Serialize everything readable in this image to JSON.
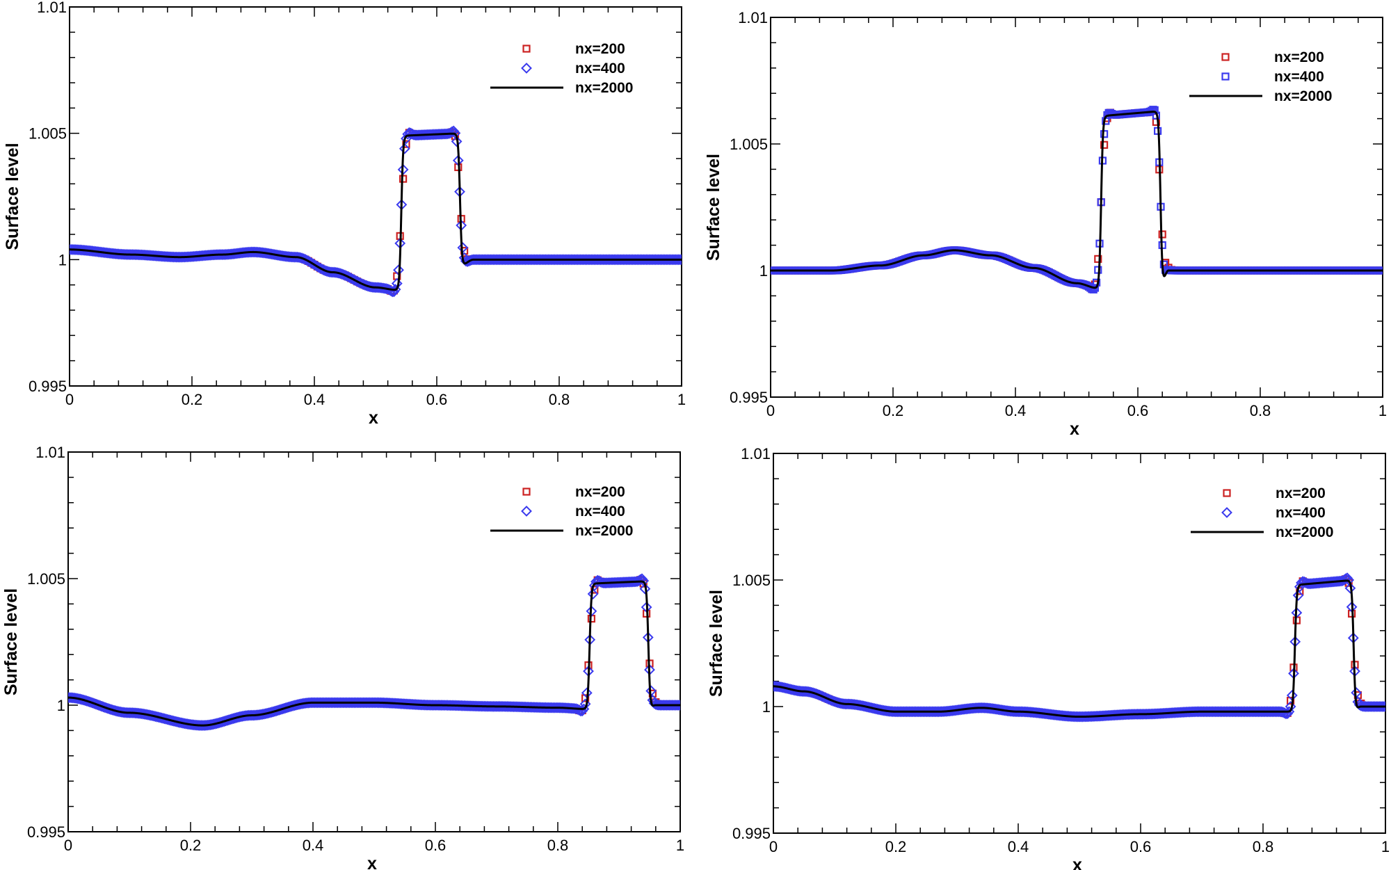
{
  "chart_data": [
    {
      "type": "scatter",
      "panel": "top-left",
      "title": "",
      "xlabel": "x",
      "ylabel": "Surface level",
      "xlim": [
        0,
        1
      ],
      "ylim": [
        0.995,
        1.01
      ],
      "xticks": [
        0,
        0.2,
        0.4,
        0.6,
        0.8,
        1
      ],
      "xtick_labels": [
        "0",
        "0.2",
        "0.4",
        "0.6",
        "0.8",
        "1"
      ],
      "yticks": [
        0.995,
        1,
        1.005,
        1.01
      ],
      "ytick_labels": [
        "0.995",
        "1",
        "1.005",
        "1.01"
      ],
      "legend_position": "top-right",
      "marker_200": "square",
      "marker_400": "diamond",
      "pulse": {
        "x_start": 0.542,
        "x_end": 0.638,
        "top": 1.0049,
        "top_end": 1.005
      },
      "profile": [
        [
          0,
          1.0004
        ],
        [
          0.1,
          1.0002
        ],
        [
          0.18,
          1.0001
        ],
        [
          0.25,
          1.0002
        ],
        [
          0.3,
          1.0003
        ],
        [
          0.37,
          1.0001
        ],
        [
          0.43,
          0.9995
        ],
        [
          0.5,
          0.9989
        ],
        [
          0.535,
          0.9988
        ],
        [
          0.6381,
          0.99975
        ],
        [
          0.66,
          1.0
        ],
        [
          1,
          1.0
        ]
      ],
      "series": [
        {
          "name": "nx=200",
          "kind": "markers",
          "color": "#cc2222",
          "n": 200
        },
        {
          "name": "nx=400",
          "kind": "markers",
          "color": "#3a3aee",
          "n": 400
        },
        {
          "name": "nx=2000",
          "kind": "line",
          "color": "#000000"
        }
      ]
    },
    {
      "type": "scatter",
      "panel": "top-right",
      "title": "",
      "xlabel": "x",
      "ylabel": "Surface level",
      "xlim": [
        0,
        1
      ],
      "ylim": [
        0.995,
        1.01
      ],
      "xticks": [
        0,
        0.2,
        0.4,
        0.6,
        0.8,
        1
      ],
      "xtick_labels": [
        "0",
        "0.2",
        "0.4",
        "0.6",
        "0.8",
        "1"
      ],
      "yticks": [
        0.995,
        1,
        1.005,
        1.01
      ],
      "ytick_labels": [
        "0.995",
        "1",
        "1.005",
        "1.01"
      ],
      "legend_position": "top-right",
      "marker_200": "square",
      "marker_400": "square",
      "pulse": {
        "x_start": 0.54,
        "x_end": 0.637,
        "top": 1.0061,
        "top_end": 1.0063
      },
      "profile": [
        [
          0,
          1.0
        ],
        [
          0.1,
          1.0
        ],
        [
          0.18,
          1.0002
        ],
        [
          0.25,
          1.0006
        ],
        [
          0.3,
          1.0008
        ],
        [
          0.36,
          1.0006
        ],
        [
          0.43,
          1.0001
        ],
        [
          0.5,
          0.9995
        ],
        [
          0.535,
          0.9993
        ],
        [
          0.6371,
          0.9994
        ],
        [
          0.65,
          1.0
        ],
        [
          1,
          1.0
        ]
      ],
      "series": [
        {
          "name": "nx=200",
          "kind": "markers",
          "color": "#cc2222",
          "n": 200
        },
        {
          "name": "nx=400",
          "kind": "markers",
          "color": "#3a3aee",
          "n": 400
        },
        {
          "name": "nx=2000",
          "kind": "line",
          "color": "#000000"
        }
      ]
    },
    {
      "type": "scatter",
      "panel": "bottom-left",
      "title": "",
      "xlabel": "x",
      "ylabel": "Surface level",
      "xlim": [
        0,
        1
      ],
      "ylim": [
        0.995,
        1.01
      ],
      "xticks": [
        0,
        0.2,
        0.4,
        0.6,
        0.8,
        1
      ],
      "xtick_labels": [
        "0",
        "0.2",
        "0.4",
        "0.6",
        "0.8",
        "1"
      ],
      "yticks": [
        0.995,
        1,
        1.005,
        1.01
      ],
      "ytick_labels": [
        "0.995",
        "1",
        "1.005",
        "1.01"
      ],
      "legend_position": "top-right",
      "marker_200": "square",
      "marker_400": "diamond",
      "pulse": {
        "x_start": 0.852,
        "x_end": 0.948,
        "top": 1.0048,
        "top_end": 1.0049
      },
      "profile": [
        [
          0,
          1.0003
        ],
        [
          0.1,
          0.9997
        ],
        [
          0.22,
          0.9992
        ],
        [
          0.3,
          0.9996
        ],
        [
          0.4,
          1.0001
        ],
        [
          0.45,
          1.0001
        ],
        [
          0.5,
          1.0001
        ],
        [
          0.6,
          1.0
        ],
        [
          0.7,
          0.99995
        ],
        [
          0.8,
          0.9999
        ],
        [
          0.845,
          0.99985
        ],
        [
          0.9481,
          0.99985
        ],
        [
          0.96,
          1.0
        ],
        [
          1,
          1.0
        ]
      ],
      "series": [
        {
          "name": "nx=200",
          "kind": "markers",
          "color": "#cc2222",
          "n": 200
        },
        {
          "name": "nx=400",
          "kind": "markers",
          "color": "#3a3aee",
          "n": 400
        },
        {
          "name": "nx=2000",
          "kind": "line",
          "color": "#000000"
        }
      ]
    },
    {
      "type": "scatter",
      "panel": "bottom-right",
      "title": "",
      "xlabel": "x",
      "ylabel": "Surface level",
      "xlim": [
        0,
        1
      ],
      "ylim": [
        0.995,
        1.01
      ],
      "xticks": [
        0,
        0.2,
        0.4,
        0.6,
        0.8,
        1
      ],
      "xtick_labels": [
        "0",
        "0.2",
        "0.4",
        "0.6",
        "0.8",
        "1"
      ],
      "yticks": [
        0.995,
        1,
        1.005,
        1.01
      ],
      "ytick_labels": [
        "0.995",
        "1",
        "1.005",
        "1.01"
      ],
      "legend_position": "top-right",
      "marker_200": "square",
      "marker_400": "diamond",
      "pulse": {
        "x_start": 0.852,
        "x_end": 0.948,
        "top": 1.0048,
        "top_end": 1.005
      },
      "profile": [
        [
          0,
          1.0008
        ],
        [
          0.05,
          1.0006
        ],
        [
          0.12,
          1.0001
        ],
        [
          0.2,
          0.9998
        ],
        [
          0.27,
          0.9998
        ],
        [
          0.34,
          0.99995
        ],
        [
          0.4,
          0.9998
        ],
        [
          0.5,
          0.9996
        ],
        [
          0.6,
          0.9997
        ],
        [
          0.7,
          0.9998
        ],
        [
          0.845,
          0.9998
        ],
        [
          0.9481,
          0.9998
        ],
        [
          0.96,
          1.0
        ],
        [
          1,
          1.0
        ]
      ],
      "series": [
        {
          "name": "nx=200",
          "kind": "markers",
          "color": "#cc2222",
          "n": 200
        },
        {
          "name": "nx=400",
          "kind": "markers",
          "color": "#3a3aee",
          "n": 400
        },
        {
          "name": "nx=2000",
          "kind": "line",
          "color": "#000000"
        }
      ]
    }
  ]
}
